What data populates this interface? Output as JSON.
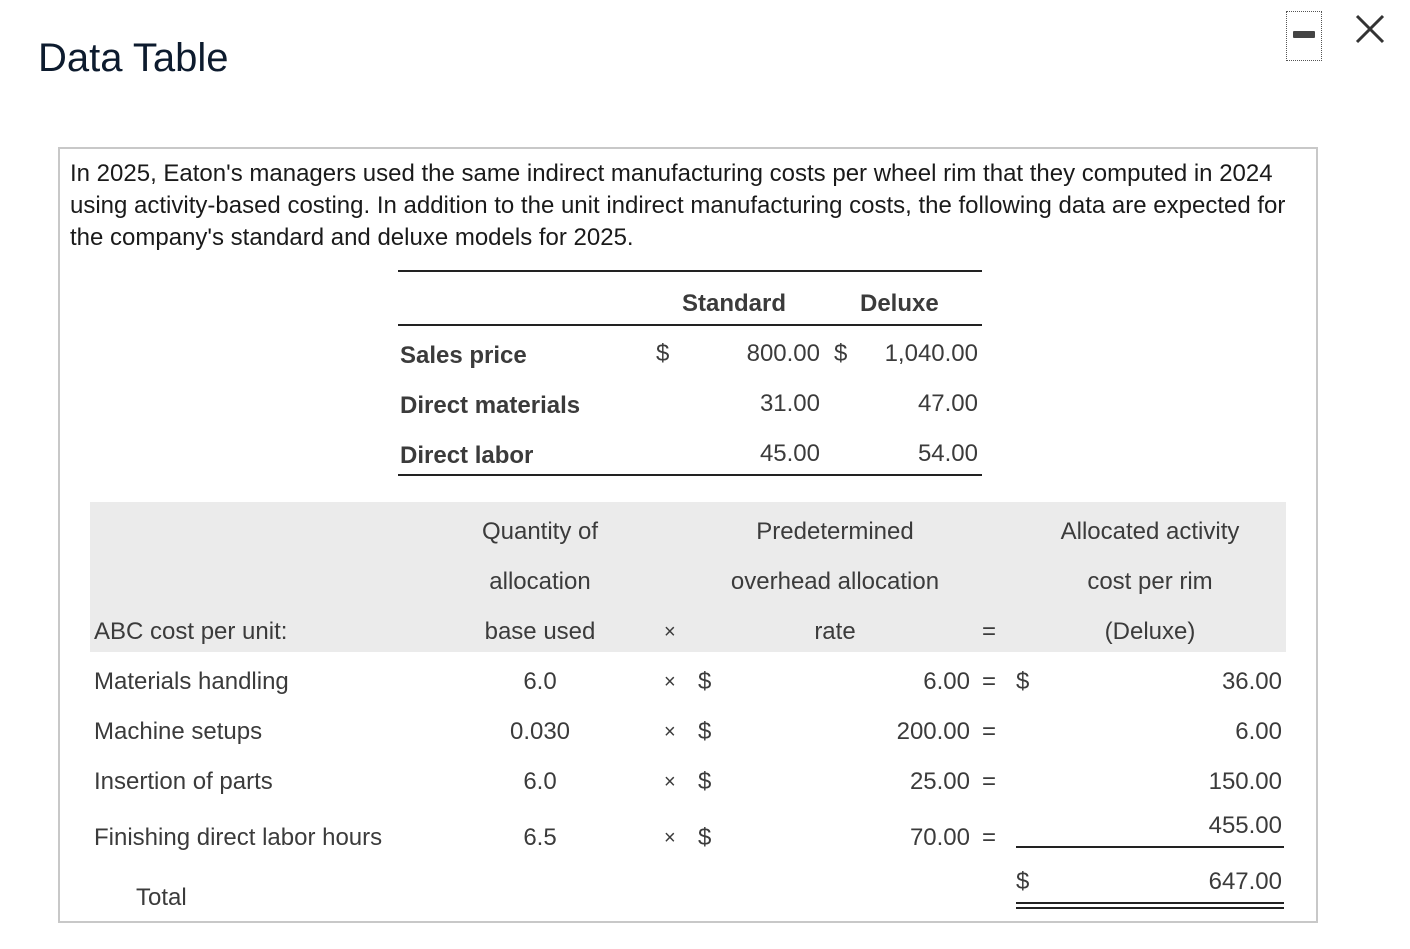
{
  "window": {
    "title": "Data Table",
    "minimize_icon": "minimize-icon",
    "close_icon": "close-icon"
  },
  "intro": "In 2025, Eaton's managers used the same indirect manufacturing costs per wheel rim that they computed in 2024 using activity-based costing. In addition to the unit indirect manufacturing costs, the following data are expected for the company's standard and deluxe models for 2025.",
  "price_table": {
    "headers": [
      "Standard",
      "Deluxe"
    ],
    "currency_symbol": "$",
    "rows": [
      {
        "label": "Sales price",
        "standard": "800.00",
        "deluxe": "1,040.00"
      },
      {
        "label": "Direct materials",
        "standard": "31.00",
        "deluxe": "47.00"
      },
      {
        "label": "Direct labor",
        "standard": "45.00",
        "deluxe": "54.00"
      }
    ]
  },
  "abc_table": {
    "row_header": "ABC cost per unit:",
    "col_quantity": [
      "Quantity of",
      "allocation",
      "base used"
    ],
    "col_rate": [
      "Predetermined",
      "overhead allocation",
      "rate"
    ],
    "col_allocated": [
      "Allocated activity",
      "cost per rim",
      "(Deluxe)"
    ],
    "times": "×",
    "equals": "=",
    "currency_symbol": "$",
    "rows": [
      {
        "label": "Materials handling",
        "quantity": "6.0",
        "rate": "6.00",
        "allocated": "36.00"
      },
      {
        "label": "Machine setups",
        "quantity": "0.030",
        "rate": "200.00",
        "allocated": "6.00"
      },
      {
        "label": "Insertion of parts",
        "quantity": "6.0",
        "rate": "25.00",
        "allocated": "150.00"
      },
      {
        "label": "Finishing direct labor hours",
        "quantity": "6.5",
        "rate": "70.00",
        "allocated": "455.00"
      }
    ],
    "total_label": "Total",
    "total_value": "647.00"
  }
}
